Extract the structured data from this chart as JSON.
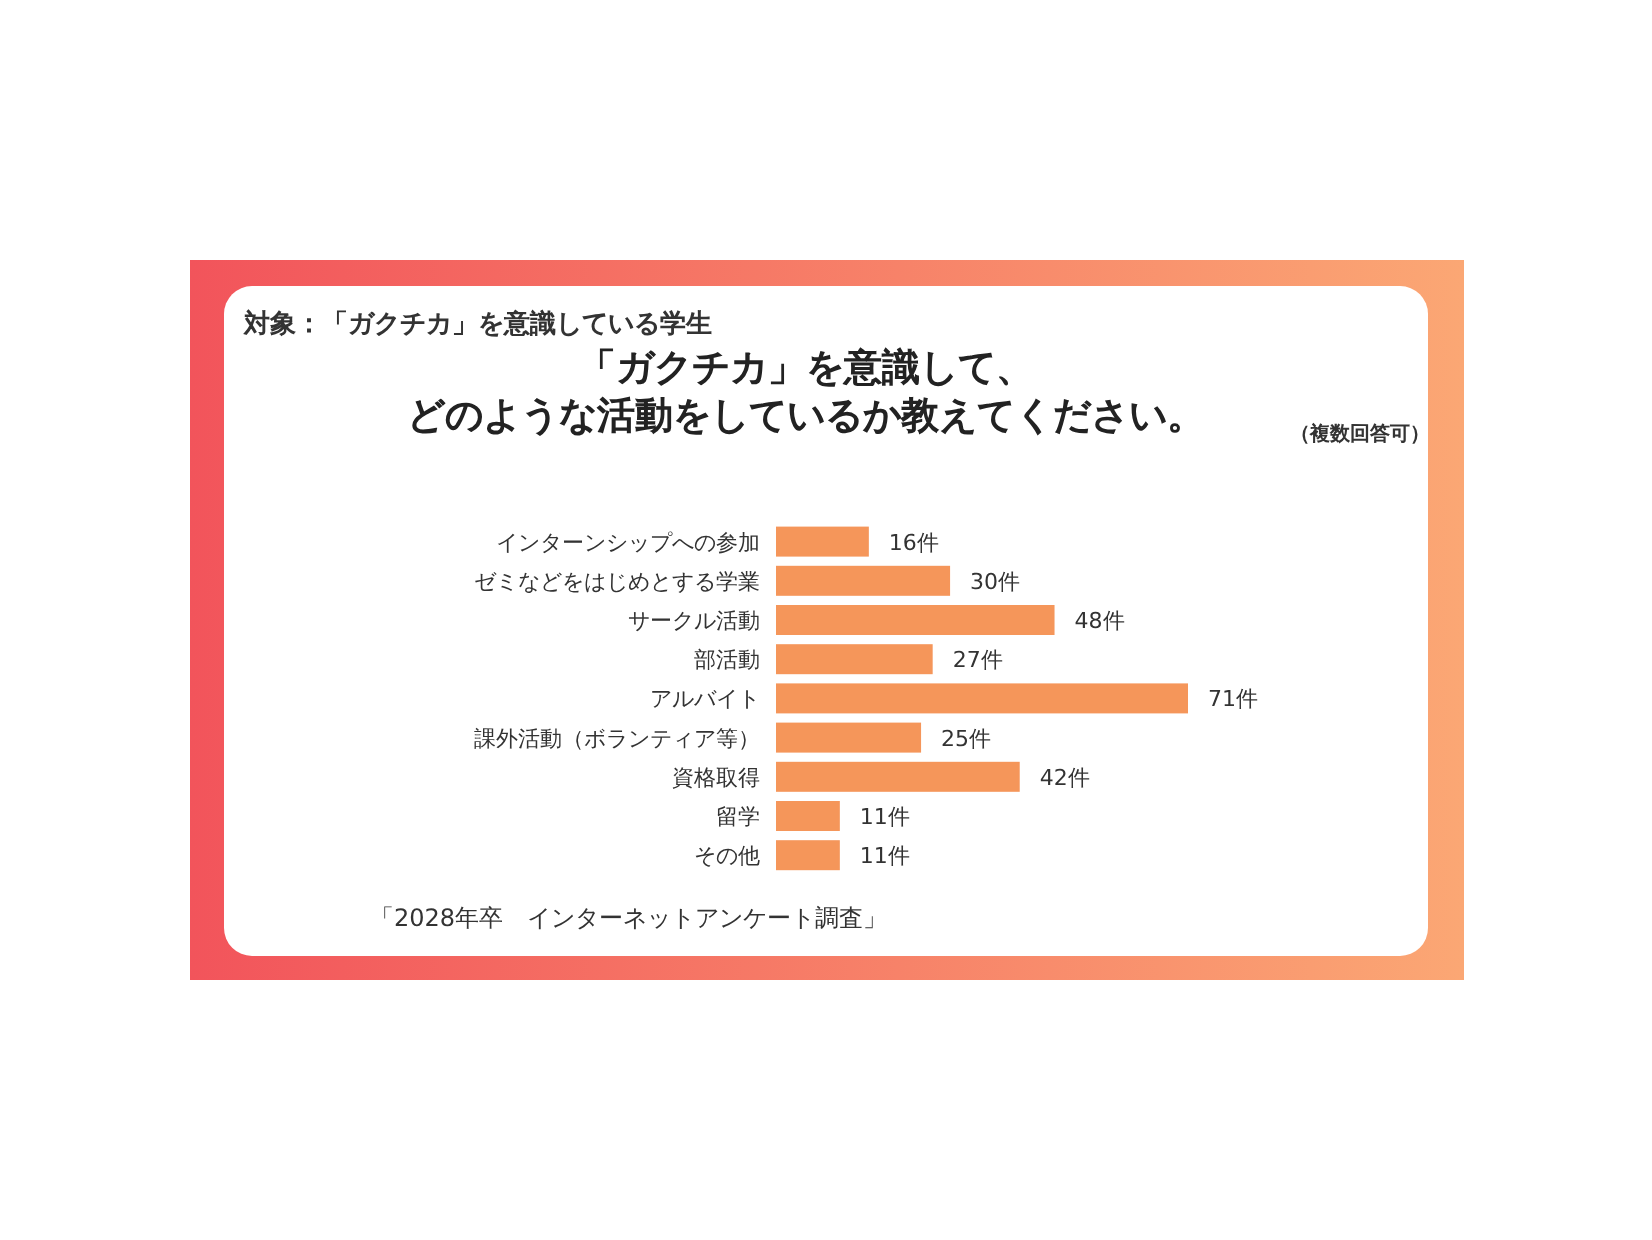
{
  "chart_data": {
    "type": "bar",
    "orientation": "horizontal",
    "title": "「ガクチカ」を意識して、どのような活動をしているか教えてください。",
    "subtitle": "対象：「ガクチカ」を意識している学生",
    "categories": [
      "インターンシップへの参加",
      "ゼミなどをはじめとする学業",
      "サークル活動",
      "部活動",
      "アルバイト",
      "課外活動（ボランティア等）",
      "資格取得",
      "留学",
      "その他"
    ],
    "values": [
      16,
      30,
      48,
      27,
      71,
      25,
      42,
      11,
      11
    ],
    "value_labels": [
      "16件",
      "30件",
      "48件",
      "27件",
      "71件",
      "25件",
      "42件",
      "11件",
      "11件"
    ],
    "color": "#f5965a",
    "annotations": [
      "（複数回答可）",
      "「2028年卒　インターネットアンケート調査」"
    ]
  }
}
